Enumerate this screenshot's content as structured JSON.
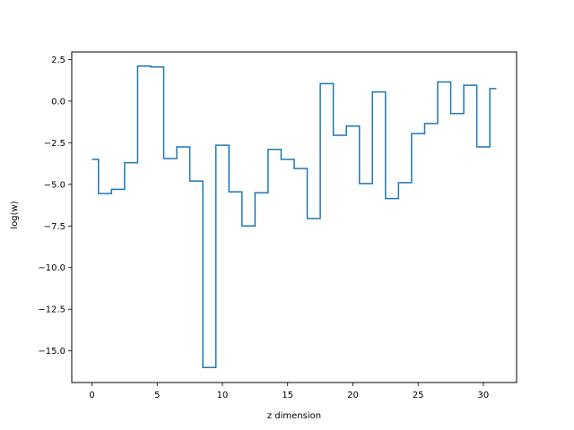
{
  "chart_data": {
    "type": "line",
    "drawstyle": "steps-mid",
    "title": "",
    "xlabel": "z dimension",
    "ylabel": "log(w)",
    "xlim": [
      -1.55,
      32.55
    ],
    "ylim": [
      -16.9,
      2.95
    ],
    "xticks": [
      0,
      5,
      10,
      15,
      20,
      25,
      30
    ],
    "xtick_labels": [
      "0",
      "5",
      "10",
      "15",
      "20",
      "25",
      "30"
    ],
    "yticks": [
      2.5,
      0.0,
      -2.5,
      -5.0,
      -7.5,
      -10.0,
      -12.5,
      -15.0
    ],
    "ytick_labels": [
      "2.5",
      "0.0",
      "−2.5",
      "−5.0",
      "−7.5",
      "−10.0",
      "−12.5",
      "−15.0"
    ],
    "grid": false,
    "line_color": "#1f77b4",
    "series": [
      {
        "x": [
          0,
          1,
          2,
          3,
          4,
          5,
          6,
          7,
          8,
          9,
          10,
          11,
          12,
          13,
          14,
          15,
          16,
          17,
          18,
          19,
          20,
          21,
          22,
          23,
          24,
          25,
          26,
          27,
          28,
          29,
          30,
          31
        ],
        "values": [
          -3.5,
          -5.55,
          -5.3,
          -3.7,
          2.1,
          2.05,
          -3.45,
          -2.75,
          -4.8,
          -16.0,
          -2.65,
          -5.45,
          -7.5,
          -5.5,
          -2.9,
          -3.5,
          -4.05,
          -7.05,
          1.05,
          -2.05,
          -1.5,
          -4.95,
          0.55,
          -5.85,
          -4.9,
          -1.95,
          -1.35,
          1.15,
          -0.75,
          0.95,
          -2.75,
          0.75
        ]
      }
    ]
  }
}
